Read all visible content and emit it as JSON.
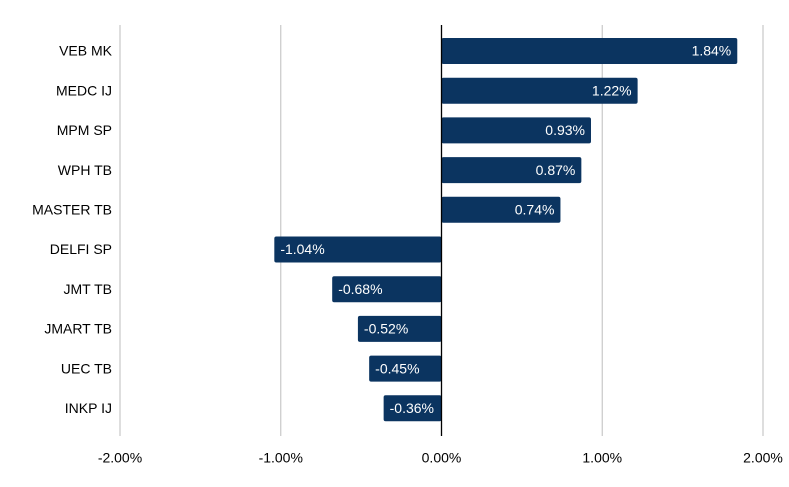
{
  "chart_data": {
    "type": "bar",
    "orientation": "horizontal",
    "categories": [
      "VEB MK",
      "MEDC IJ",
      "MPM SP",
      "WPH TB",
      "MASTER TB",
      "DELFI SP",
      "JMT TB",
      "JMART TB",
      "UEC TB",
      "INKP IJ"
    ],
    "values": [
      1.84,
      1.22,
      0.93,
      0.87,
      0.74,
      -1.04,
      -0.68,
      -0.52,
      -0.45,
      -0.36
    ],
    "data_labels": [
      "1.84%",
      "1.22%",
      "0.93%",
      "0.87%",
      "0.74%",
      "-1.04%",
      "-0.68%",
      "-0.52%",
      "-0.45%",
      "-0.36%"
    ],
    "xlim": [
      -2,
      2
    ],
    "x_ticks": [
      -2,
      -1,
      0,
      1,
      2
    ],
    "x_tick_labels": [
      "-2.00%",
      "-1.00%",
      "0.00%",
      "1.00%",
      "2.00%"
    ],
    "grid": "vertical",
    "legend": "none",
    "bar_color": "#0b3460",
    "gridline_color": "#c8c8c8",
    "zero_line_color": "#000000"
  }
}
